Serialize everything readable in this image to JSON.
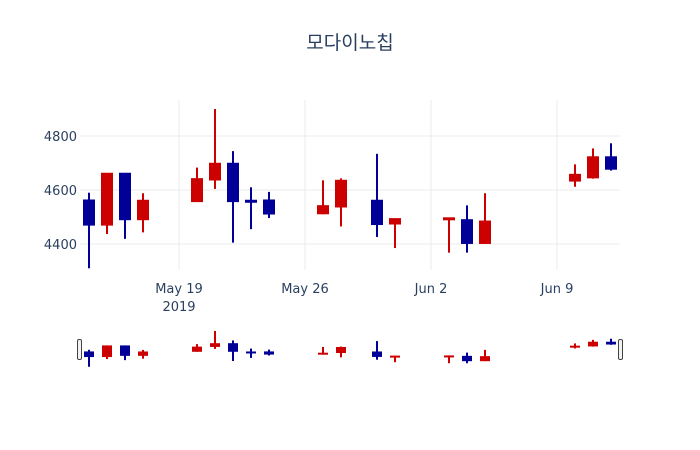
{
  "title": "모다이노칩",
  "colors": {
    "increasing": "#cc0000",
    "decreasing": "#000099",
    "grid": "#ebebeb",
    "axis_text": "#2a3f5f",
    "rangeslider_handle": "#444444"
  },
  "axes": {
    "y_ticks": [
      {
        "value": 4400,
        "label": "4400"
      },
      {
        "value": 4600,
        "label": "4600"
      },
      {
        "value": 4800,
        "label": "4800"
      }
    ],
    "x_ticks": [
      {
        "date": "2019-05-19",
        "label": "May 19",
        "sublabel": "2019"
      },
      {
        "date": "2019-05-26",
        "label": "May 26",
        "sublabel": ""
      },
      {
        "date": "2019-06-02",
        "label": "Jun 2",
        "sublabel": ""
      },
      {
        "date": "2019-06-09",
        "label": "Jun 9",
        "sublabel": ""
      }
    ]
  },
  "chart_data": {
    "type": "candlestick",
    "title": "모다이노칩",
    "xlabel": "",
    "ylabel": "",
    "ylim": [
      4304,
      4933
    ],
    "xlim": [
      "2019-05-13T12:00",
      "2019-06-12T12:00"
    ],
    "grid": true,
    "legend": "none",
    "rangeslider": true,
    "increasing_color": "#cc0000",
    "decreasing_color": "#000099",
    "x": [
      "2019-05-14",
      "2019-05-15",
      "2019-05-16",
      "2019-05-17",
      "2019-05-20",
      "2019-05-21",
      "2019-05-22",
      "2019-05-23",
      "2019-05-24",
      "2019-05-27",
      "2019-05-28",
      "2019-05-30",
      "2019-05-31",
      "2019-06-03",
      "2019-06-04",
      "2019-06-05",
      "2019-06-10",
      "2019-06-11",
      "2019-06-12"
    ],
    "open": [
      4563,
      4470,
      4662,
      4490,
      4557,
      4637,
      4699,
      4562,
      4563,
      4512,
      4537,
      4562,
      4474,
      4490,
      4490,
      4402,
      4633,
      4645,
      4723
    ],
    "high": [
      4590,
      4662,
      4662,
      4588,
      4683,
      4900,
      4744,
      4610,
      4593,
      4636,
      4643,
      4734,
      4494,
      4497,
      4543,
      4588,
      4695,
      4754,
      4773
    ],
    "low": [
      4310,
      4437,
      4419,
      4443,
      4557,
      4604,
      4405,
      4455,
      4496,
      4510,
      4465,
      4426,
      4385,
      4368,
      4368,
      4402,
      4612,
      4642,
      4672
    ],
    "close": [
      4470,
      4662,
      4490,
      4562,
      4642,
      4699,
      4557,
      4558,
      4511,
      4542,
      4636,
      4472,
      4494,
      4497,
      4402,
      4485,
      4658,
      4723,
      4677
    ]
  }
}
